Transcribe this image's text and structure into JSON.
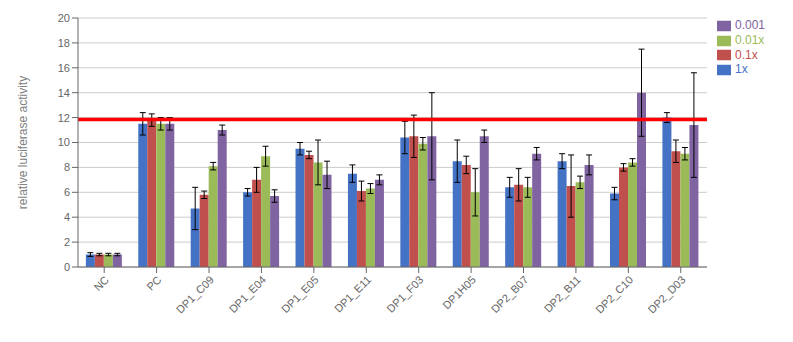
{
  "chart_data": {
    "type": "bar",
    "ylabel": "relative luciferase activity",
    "categories": [
      "NC",
      "PC",
      "DP1_C09",
      "DP1_E04",
      "DP1_E05",
      "DP1_E11",
      "DP1_F03",
      "DP1H05",
      "DP2_B07",
      "DP2_B11",
      "DP2_C10",
      "DP2_D03"
    ],
    "series": [
      {
        "name": "1x",
        "color": "#4472c4",
        "values": [
          1.0,
          11.5,
          4.7,
          6.0,
          9.5,
          7.5,
          10.4,
          8.5,
          6.4,
          8.5,
          5.9,
          12.0
        ],
        "errors": [
          0.15,
          0.9,
          1.7,
          0.3,
          0.5,
          0.7,
          1.3,
          1.7,
          0.8,
          0.6,
          0.5,
          0.4
        ]
      },
      {
        "name": "0.1x",
        "color": "#c0504d",
        "values": [
          1.0,
          11.8,
          5.8,
          7.0,
          9.0,
          6.1,
          10.5,
          8.2,
          6.6,
          6.5,
          8.0,
          9.3
        ],
        "errors": [
          0.1,
          0.5,
          0.3,
          1.0,
          0.3,
          0.8,
          1.7,
          0.7,
          1.3,
          2.5,
          0.3,
          0.9
        ]
      },
      {
        "name": "0.01x",
        "color": "#9bbb59",
        "values": [
          1.0,
          11.5,
          8.1,
          8.9,
          8.4,
          6.3,
          9.9,
          6.0,
          6.4,
          6.8,
          8.4,
          9.1
        ],
        "errors": [
          0.1,
          0.5,
          0.3,
          0.8,
          1.8,
          0.4,
          0.5,
          1.9,
          0.8,
          0.5,
          0.3,
          0.5
        ]
      },
      {
        "name": "0.001",
        "color": "#8064a2",
        "values": [
          1.0,
          11.5,
          11.0,
          5.7,
          7.4,
          7.0,
          10.5,
          10.5,
          9.1,
          8.2,
          14.0,
          11.4
        ],
        "errors": [
          0.1,
          0.5,
          0.4,
          0.5,
          1.1,
          0.4,
          3.5,
          0.5,
          0.5,
          0.8,
          3.5,
          4.2
        ]
      }
    ],
    "hlines": [
      {
        "y": 11.85,
        "color": "#ff0000"
      }
    ],
    "ylim": [
      0,
      20
    ],
    "yticks": [
      0,
      2,
      4,
      6,
      8,
      10,
      12,
      14,
      16,
      18,
      20
    ],
    "grid": true,
    "legend": "right"
  }
}
